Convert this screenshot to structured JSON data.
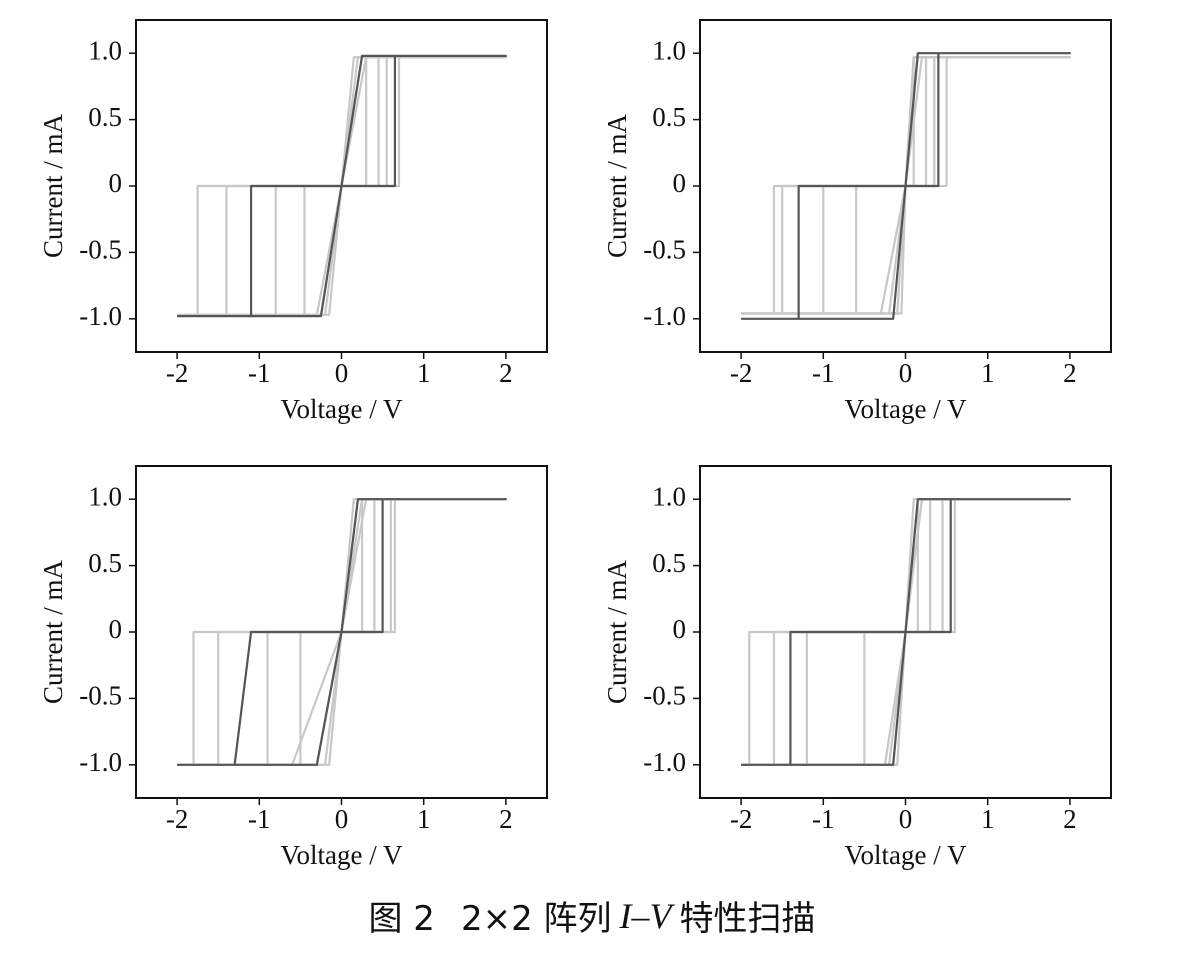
{
  "chart_data": [
    {
      "type": "line",
      "xlabel": "Voltage / V",
      "ylabel": "Current / mA",
      "xlim": [
        -2.5,
        2.5
      ],
      "xticks": [
        -2,
        -1,
        0,
        1,
        2
      ],
      "ylim": [
        -1.25,
        1.25
      ],
      "yticks": [
        {
          "value": -1,
          "label": "-1.0"
        },
        -0.5,
        0,
        0.5,
        {
          "value": 1,
          "label": "1.0"
        }
      ],
      "series": [
        {
          "color": "#c8c8c8",
          "x": [
            -2,
            -1.75,
            -1.75,
            0.3,
            0.3,
            2,
            0.2,
            0,
            -0.2,
            -2
          ],
          "values": [
            -0.97,
            -0.97,
            0,
            0,
            0.97,
            0.97,
            0.97,
            0,
            -0.97,
            -0.97
          ]
        },
        {
          "color": "#c8c8c8",
          "x": [
            -2,
            -1.4,
            -1.4,
            0.45,
            0.45,
            2,
            0.3,
            0,
            -0.3,
            -2
          ],
          "values": [
            -0.97,
            -0.97,
            0,
            0,
            0.97,
            0.97,
            0.97,
            0,
            -0.97,
            -0.97
          ]
        },
        {
          "color": "#c8c8c8",
          "x": [
            -2,
            -0.8,
            -0.8,
            0.55,
            0.55,
            2,
            0.15,
            0,
            -0.15,
            -2
          ],
          "values": [
            -0.97,
            -0.97,
            0,
            0,
            0.97,
            0.97,
            0.97,
            0,
            -0.97,
            -0.97
          ]
        },
        {
          "color": "#c8c8c8",
          "x": [
            -2,
            -0.45,
            -0.45,
            0.7,
            0.7,
            2,
            0.25,
            0,
            -0.25,
            -2
          ],
          "values": [
            -0.97,
            -0.97,
            0,
            0,
            0.97,
            0.97,
            0.97,
            0,
            -0.97,
            -0.97
          ]
        },
        {
          "color": "#555555",
          "x": [
            -2,
            -1.1,
            -1.1,
            0.65,
            0.65,
            2,
            0.25,
            0,
            -0.25,
            -2
          ],
          "values": [
            -0.98,
            -0.98,
            0,
            0,
            0.98,
            0.98,
            0.98,
            0,
            -0.98,
            -0.98
          ]
        }
      ]
    },
    {
      "type": "line",
      "xlabel": "Voltage / V",
      "ylabel": "Current / mA",
      "xlim": [
        -2.5,
        2.5
      ],
      "xticks": [
        -2,
        -1,
        0,
        1,
        2
      ],
      "ylim": [
        -1.25,
        1.25
      ],
      "yticks": [
        {
          "value": -1,
          "label": "-1.0"
        },
        -0.5,
        0,
        0.5,
        {
          "value": 1,
          "label": "1.0"
        }
      ],
      "series": [
        {
          "color": "#c8c8c8",
          "x": [
            -2,
            -1.6,
            -1.6,
            0.1,
            0.1,
            2,
            0.1,
            0,
            -0.1,
            -2
          ],
          "values": [
            -0.96,
            -0.96,
            0,
            0,
            0.97,
            0.97,
            0.97,
            0,
            -0.96,
            -0.96
          ]
        },
        {
          "color": "#c8c8c8",
          "x": [
            -2,
            -1.5,
            -1.5,
            0.25,
            0.25,
            2,
            0.2,
            0,
            -0.2,
            -2
          ],
          "values": [
            -0.96,
            -0.96,
            0,
            0,
            0.97,
            0.97,
            0.97,
            0,
            -0.96,
            -0.96
          ]
        },
        {
          "color": "#c8c8c8",
          "x": [
            -2,
            -1,
            -1,
            0.35,
            0.35,
            2,
            0.15,
            0,
            -0.3,
            -2
          ],
          "values": [
            -0.96,
            -0.96,
            0,
            0,
            0.97,
            0.97,
            0.97,
            0,
            -0.96,
            -0.96
          ]
        },
        {
          "color": "#c8c8c8",
          "x": [
            -2,
            -0.6,
            -0.6,
            0.5,
            0.5,
            2,
            0.1,
            0,
            -0.05,
            -2
          ],
          "values": [
            -0.96,
            -0.96,
            0,
            0,
            0.97,
            0.97,
            0.97,
            0,
            -0.96,
            -0.96
          ]
        },
        {
          "color": "#555555",
          "x": [
            -2,
            -1.3,
            -1.3,
            0.4,
            0.4,
            2,
            0.15,
            0,
            -0.15,
            -2
          ],
          "values": [
            -1,
            -1,
            0,
            0,
            1,
            1,
            1,
            0,
            -1,
            -1
          ]
        }
      ]
    },
    {
      "type": "line",
      "xlabel": "Voltage / V",
      "ylabel": "Current / mA",
      "xlim": [
        -2.5,
        2.5
      ],
      "xticks": [
        -2,
        -1,
        0,
        1,
        2
      ],
      "ylim": [
        -1.25,
        1.25
      ],
      "yticks": [
        {
          "value": -1,
          "label": "-1.0"
        },
        -0.5,
        0,
        0.5,
        {
          "value": 1,
          "label": "1.0"
        }
      ],
      "series": [
        {
          "color": "#c8c8c8",
          "x": [
            -2,
            -1.8,
            -1.8,
            0.25,
            0.25,
            2,
            0.2,
            0,
            -0.2,
            -2
          ],
          "values": [
            -1,
            -1,
            0,
            0,
            1,
            1,
            1,
            0,
            -1,
            -1
          ]
        },
        {
          "color": "#c8c8c8",
          "x": [
            -2,
            -1.5,
            -1.5,
            0.4,
            0.4,
            2,
            0.3,
            0,
            -0.6,
            -2
          ],
          "values": [
            -1,
            -1,
            0,
            0,
            1,
            1,
            1,
            0,
            -1,
            -1
          ]
        },
        {
          "color": "#c8c8c8",
          "x": [
            -2,
            -0.9,
            -0.9,
            0.6,
            0.6,
            2,
            0.15,
            0,
            -0.15,
            -2
          ],
          "values": [
            -1,
            -1,
            0,
            0,
            1,
            1,
            1,
            0,
            -1,
            -1
          ]
        },
        {
          "color": "#c8c8c8",
          "x": [
            -2,
            -0.5,
            -0.5,
            0.65,
            0.65,
            2,
            0.25,
            0,
            -0.3,
            -2
          ],
          "values": [
            -1,
            -1,
            0,
            0,
            1,
            1,
            1,
            0,
            -1,
            -1
          ]
        },
        {
          "color": "#555555",
          "x": [
            -2,
            -1.3,
            -1.1,
            0.5,
            0.5,
            2,
            0.2,
            0,
            -0.3,
            -2
          ],
          "values": [
            -1,
            -1,
            0,
            0,
            1,
            1,
            1,
            0,
            -1,
            -1
          ]
        }
      ]
    },
    {
      "type": "line",
      "xlabel": "Voltage / V",
      "ylabel": "Current / mA",
      "xlim": [
        -2.5,
        2.5
      ],
      "xticks": [
        -2,
        -1,
        0,
        1,
        2
      ],
      "ylim": [
        -1.25,
        1.25
      ],
      "yticks": [
        {
          "value": -1,
          "label": "-1.0"
        },
        -0.5,
        0,
        0.5,
        {
          "value": 1,
          "label": "1.0"
        }
      ],
      "series": [
        {
          "color": "#c8c8c8",
          "x": [
            -2,
            -1.9,
            -1.9,
            0.15,
            0.15,
            2,
            0.1,
            0,
            -0.1,
            -2
          ],
          "values": [
            -1,
            -1,
            0,
            0,
            1,
            1,
            1,
            0,
            -1,
            -1
          ]
        },
        {
          "color": "#c8c8c8",
          "x": [
            -2,
            -1.6,
            -1.6,
            0.3,
            0.3,
            2,
            0.2,
            0,
            -0.2,
            -2
          ],
          "values": [
            -1,
            -1,
            0,
            0,
            1,
            1,
            1,
            0,
            -1,
            -1
          ]
        },
        {
          "color": "#c8c8c8",
          "x": [
            -2,
            -1.2,
            -1.2,
            0.45,
            0.45,
            2,
            0.15,
            0,
            -0.15,
            -2
          ],
          "values": [
            -1,
            -1,
            0,
            0,
            1,
            1,
            1,
            0,
            -1,
            -1
          ]
        },
        {
          "color": "#c8c8c8",
          "x": [
            -2,
            -0.5,
            -0.5,
            0.6,
            0.6,
            2,
            0.2,
            0,
            -0.25,
            -2
          ],
          "values": [
            -1,
            -1,
            0,
            0,
            1,
            1,
            1,
            0,
            -1,
            -1
          ]
        },
        {
          "color": "#555555",
          "x": [
            -2,
            -1.4,
            -1.4,
            0.55,
            0.55,
            2,
            0.15,
            0,
            -0.15,
            -2
          ],
          "values": [
            -1,
            -1,
            0,
            0,
            1,
            1,
            1,
            0,
            -1,
            -1
          ]
        }
      ]
    }
  ],
  "caption": [
    "图 2",
    "2×2 阵列",
    "I–V",
    "特性扫描"
  ]
}
